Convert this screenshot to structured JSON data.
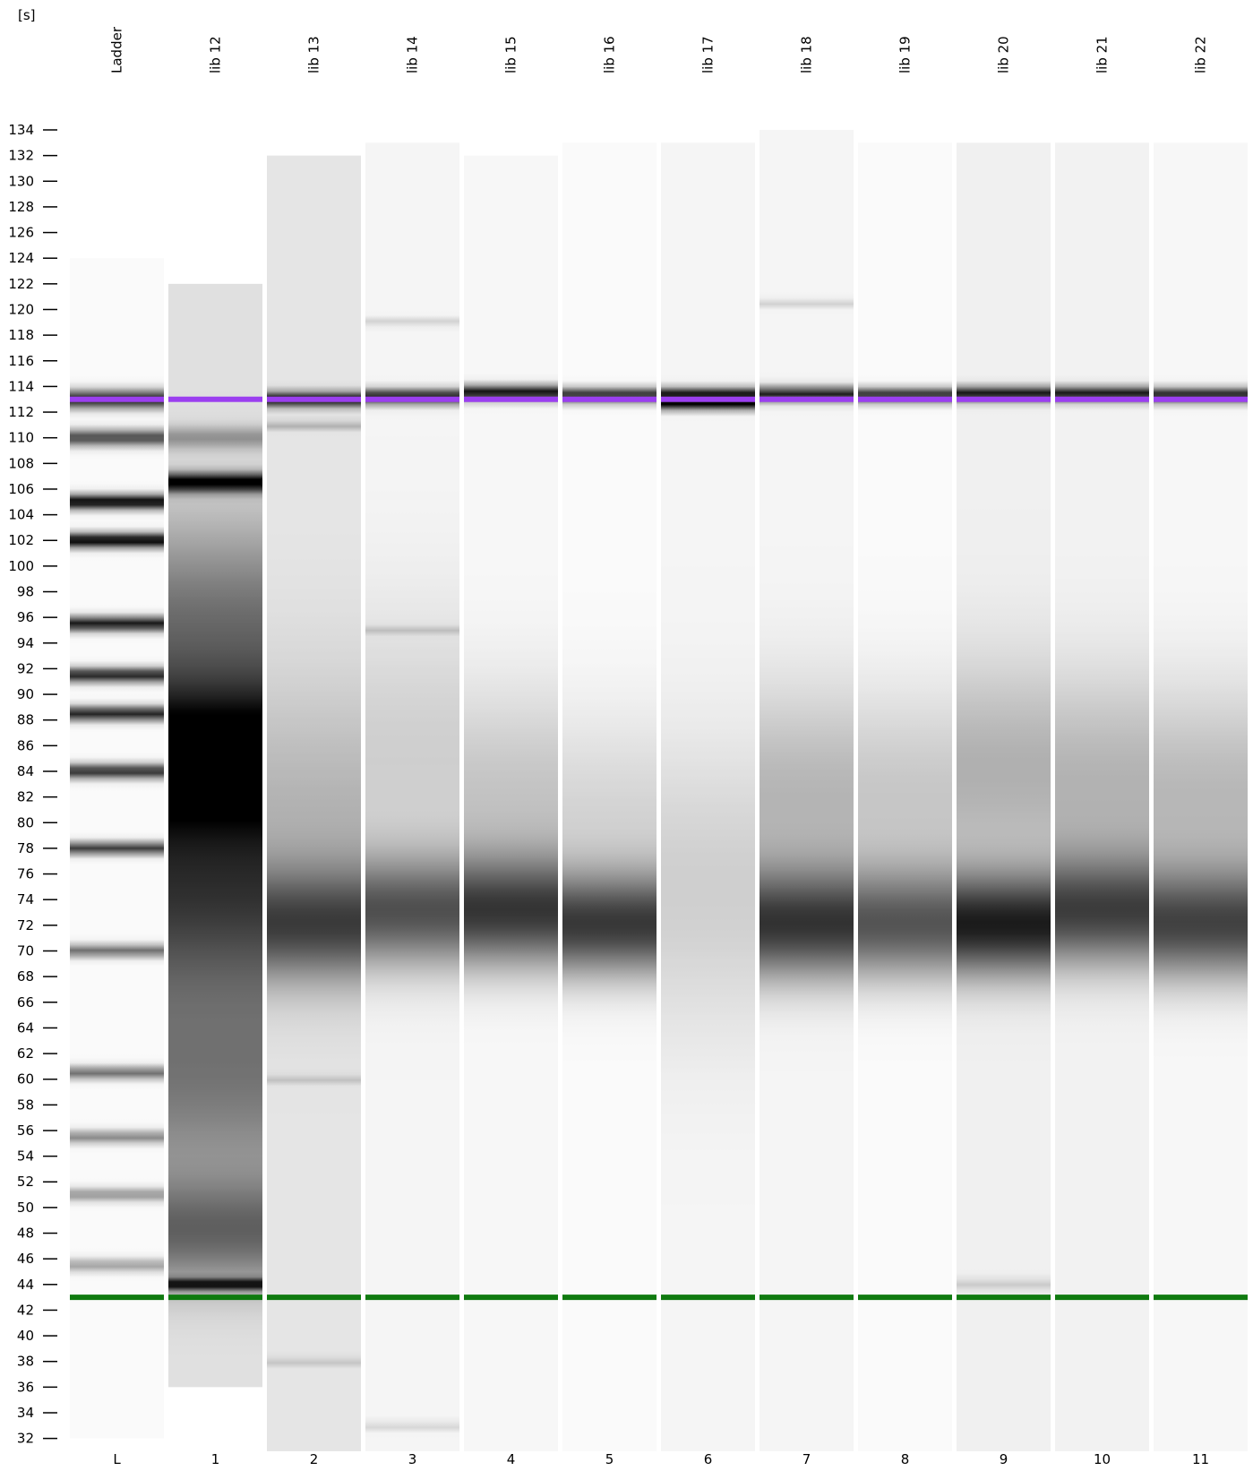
{
  "unit_label": "[s]",
  "y_axis": {
    "ticks": [
      134,
      132,
      130,
      128,
      126,
      124,
      122,
      120,
      118,
      116,
      114,
      112,
      110,
      108,
      106,
      104,
      102,
      100,
      98,
      96,
      94,
      92,
      90,
      88,
      86,
      84,
      82,
      80,
      78,
      76,
      74,
      72,
      70,
      68,
      66,
      64,
      62,
      60,
      58,
      56,
      54,
      52,
      50,
      48,
      46,
      44,
      42,
      40,
      38,
      36,
      34,
      32
    ],
    "min": 31,
    "max": 134
  },
  "colors": {
    "upper_marker": "#9b3ff0",
    "lower_marker": "#0f7a0f",
    "band": "#000000",
    "background": "#ffffff"
  },
  "lanes": [
    {
      "label": "Ladder",
      "number": "L",
      "top": 124,
      "bottom": 32,
      "base": 0.02,
      "bands": [
        [
          113,
          0.85,
          0.5
        ],
        [
          110,
          0.7,
          0.45
        ],
        [
          105,
          1.0,
          0.4
        ],
        [
          102,
          1.0,
          0.4
        ],
        [
          95.5,
          0.9,
          0.4
        ],
        [
          91.5,
          0.85,
          0.4
        ],
        [
          88.5,
          0.85,
          0.4
        ],
        [
          84,
          0.8,
          0.4
        ],
        [
          78,
          0.75,
          0.35
        ],
        [
          70,
          0.55,
          0.35
        ],
        [
          60.5,
          0.55,
          0.35
        ],
        [
          55.5,
          0.45,
          0.35
        ],
        [
          51,
          0.4,
          0.35
        ],
        [
          45.5,
          0.35,
          0.35
        ]
      ],
      "smears": []
    },
    {
      "label": "lib 12",
      "number": "1",
      "top": 122,
      "bottom": 36,
      "base": 0.12,
      "bands": [
        [
          106.5,
          0.95,
          0.5
        ],
        [
          84.5,
          1.0,
          1.2
        ],
        [
          44,
          0.75,
          0.3
        ],
        [
          110,
          0.3,
          0.6
        ]
      ],
      "smears": [
        [
          85,
          0.85,
          4
        ],
        [
          75,
          0.65,
          6
        ],
        [
          95,
          0.45,
          6
        ],
        [
          60,
          0.4,
          6
        ],
        [
          48,
          0.45,
          3
        ]
      ]
    },
    {
      "label": "lib 13",
      "number": "2",
      "top": 132,
      "bottom": 31,
      "base": 0.1,
      "bands": [
        [
          113,
          0.85,
          0.4
        ],
        [
          111,
          0.25,
          0.2
        ],
        [
          60,
          0.15,
          0.2
        ],
        [
          38,
          0.15,
          0.2
        ]
      ],
      "smears": [
        [
          72,
          0.55,
          3
        ],
        [
          80,
          0.2,
          8
        ]
      ]
    },
    {
      "label": "lib 14",
      "number": "3",
      "top": 133,
      "bottom": 31,
      "base": 0.04,
      "bands": [
        [
          113.2,
          0.9,
          0.4
        ],
        [
          119,
          0.15,
          0.2
        ],
        [
          95,
          0.15,
          0.2
        ],
        [
          33,
          0.15,
          0.2
        ]
      ],
      "smears": [
        [
          73,
          0.6,
          3
        ],
        [
          85,
          0.15,
          8
        ]
      ]
    },
    {
      "label": "lib 15",
      "number": "4",
      "top": 132,
      "bottom": 31,
      "base": 0.03,
      "bands": [
        [
          113.5,
          0.95,
          0.4
        ]
      ],
      "smears": [
        [
          73,
          0.7,
          3
        ],
        [
          82,
          0.2,
          6
        ]
      ]
    },
    {
      "label": "lib 16",
      "number": "5",
      "top": 133,
      "bottom": 31,
      "base": 0.02,
      "bands": [
        [
          113.3,
          0.85,
          0.4
        ]
      ],
      "smears": [
        [
          72,
          0.7,
          2.8
        ],
        [
          80,
          0.15,
          6
        ]
      ]
    },
    {
      "label": "lib 17",
      "number": "6",
      "top": 133,
      "bottom": 31,
      "base": 0.04,
      "bands": [
        [
          113.4,
          0.9,
          0.35
        ],
        [
          112.6,
          0.9,
          0.3
        ]
      ],
      "smears": [
        [
          75,
          0.15,
          8
        ]
      ]
    },
    {
      "label": "lib 18",
      "number": "7",
      "top": 134,
      "bottom": 31,
      "base": 0.04,
      "bands": [
        [
          113.4,
          0.85,
          0.4
        ],
        [
          120.5,
          0.15,
          0.2
        ]
      ],
      "smears": [
        [
          72,
          0.7,
          3
        ],
        [
          82,
          0.25,
          6
        ]
      ]
    },
    {
      "label": "lib 19",
      "number": "8",
      "top": 133,
      "bottom": 31,
      "base": 0.02,
      "bands": [
        [
          113.3,
          0.85,
          0.4
        ]
      ],
      "smears": [
        [
          72,
          0.6,
          3
        ],
        [
          82,
          0.2,
          6
        ]
      ]
    },
    {
      "label": "lib 20",
      "number": "9",
      "top": 133,
      "bottom": 31,
      "base": 0.06,
      "bands": [
        [
          113.4,
          0.9,
          0.4
        ],
        [
          44,
          0.15,
          0.3
        ]
      ],
      "smears": [
        [
          72,
          0.8,
          2.8
        ],
        [
          84,
          0.25,
          6
        ]
      ]
    },
    {
      "label": "lib 21",
      "number": "10",
      "top": 133,
      "bottom": 31,
      "base": 0.05,
      "bands": [
        [
          113.4,
          0.9,
          0.4
        ]
      ],
      "smears": [
        [
          73,
          0.65,
          3
        ],
        [
          83,
          0.25,
          6
        ]
      ]
    },
    {
      "label": "lib 22",
      "number": "11",
      "top": 133,
      "bottom": 31,
      "base": 0.03,
      "bands": [
        [
          113.3,
          0.9,
          0.4
        ]
      ],
      "smears": [
        [
          72,
          0.65,
          3
        ],
        [
          82,
          0.25,
          6
        ]
      ]
    }
  ],
  "markers": {
    "upper": 113,
    "lower": 43
  }
}
